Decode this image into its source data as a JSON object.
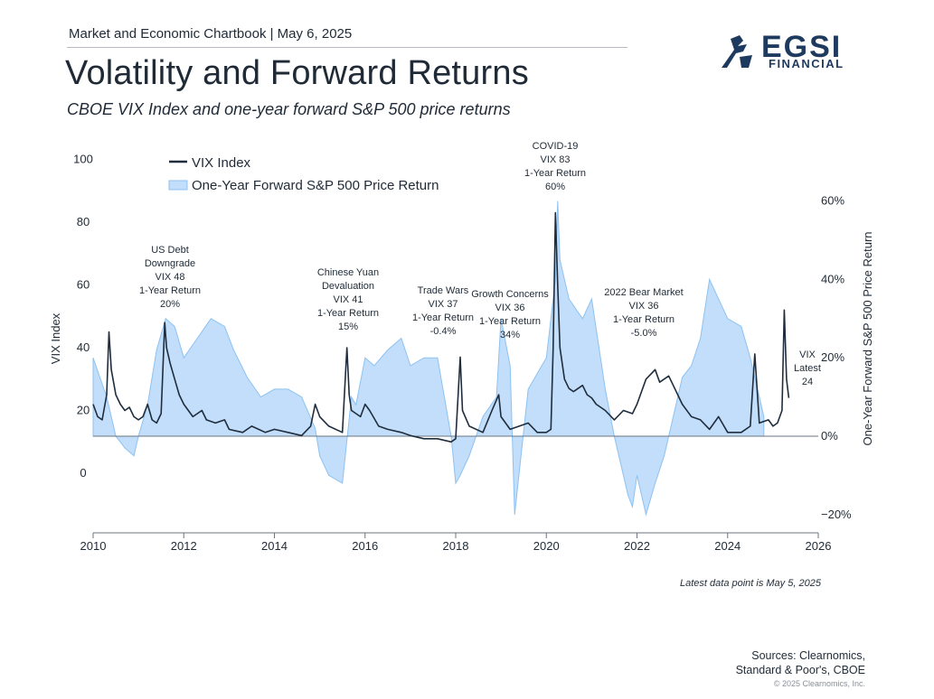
{
  "header": {
    "topline": "Market and Economic Chartbook | May 6, 2025",
    "title": "Volatility and Forward Returns",
    "subtitle": "CBOE VIX Index and one-year forward S&P 500 price returns"
  },
  "logo": {
    "name": "EGSI",
    "sub": "FINANCIAL",
    "icon": "eagle-logo-icon"
  },
  "footer": {
    "note": "Latest data point is May 5, 2025",
    "sources_line1": "Sources: Clearnomics,",
    "sources_line2": "Standard & Poor's, CBOE",
    "copyright": "© 2025 Clearnomics, Inc."
  },
  "colors": {
    "vix": "#1f2d3d",
    "ret_fill": "#c3defa",
    "ret_line": "#8cc2f1",
    "axis": "#6b7480"
  },
  "chart_data": {
    "type": "line",
    "xlabel": "",
    "ylabel": "VIX Index",
    "y2label": "One-Year Forward S&P 500 Price Return",
    "xlim": [
      2010,
      2026
    ],
    "ylim": [
      0,
      100
    ],
    "y2lim": [
      -20,
      60
    ],
    "x_ticks": [
      "2010",
      "2012",
      "2014",
      "2016",
      "2018",
      "2020",
      "2022",
      "2024",
      "2026"
    ],
    "y_ticks": [
      "0",
      "20",
      "40",
      "60",
      "80",
      "100"
    ],
    "y2_ticks": [
      "−20%",
      "0%",
      "20%",
      "40%",
      "60%"
    ],
    "legend_position": "top-left",
    "series": [
      {
        "name": "VIX Index",
        "axis": "left",
        "x": [
          2010.0,
          2010.1,
          2010.2,
          2010.3,
          2010.35,
          2010.4,
          2010.5,
          2010.6,
          2010.7,
          2010.8,
          2010.9,
          2011.0,
          2011.1,
          2011.2,
          2011.3,
          2011.4,
          2011.5,
          2011.58,
          2011.62,
          2011.7,
          2011.8,
          2011.9,
          2012.0,
          2012.2,
          2012.4,
          2012.5,
          2012.7,
          2012.9,
          2013.0,
          2013.3,
          2013.5,
          2013.8,
          2014.0,
          2014.3,
          2014.6,
          2014.8,
          2014.9,
          2015.0,
          2015.2,
          2015.5,
          2015.6,
          2015.65,
          2015.7,
          2015.9,
          2016.0,
          2016.1,
          2016.3,
          2016.5,
          2016.8,
          2017.0,
          2017.3,
          2017.6,
          2017.9,
          2018.0,
          2018.1,
          2018.15,
          2018.3,
          2018.6,
          2018.8,
          2018.95,
          2019.0,
          2019.2,
          2019.4,
          2019.6,
          2019.8,
          2020.0,
          2020.1,
          2020.15,
          2020.2,
          2020.25,
          2020.3,
          2020.4,
          2020.5,
          2020.6,
          2020.8,
          2020.9,
          2021.0,
          2021.1,
          2021.3,
          2021.5,
          2021.7,
          2021.9,
          2022.0,
          2022.2,
          2022.4,
          2022.5,
          2022.7,
          2022.8,
          2023.0,
          2023.2,
          2023.4,
          2023.6,
          2023.8,
          2024.0,
          2024.3,
          2024.5,
          2024.6,
          2024.7,
          2024.9,
          2025.0,
          2025.1,
          2025.2,
          2025.25,
          2025.3,
          2025.35
        ],
        "values": [
          22,
          18,
          17,
          25,
          45,
          33,
          25,
          22,
          20,
          21,
          18,
          17,
          18,
          22,
          17,
          16,
          19,
          48,
          40,
          35,
          30,
          25,
          22,
          18,
          20,
          17,
          16,
          17,
          14,
          13,
          15,
          13,
          14,
          13,
          12,
          15,
          22,
          18,
          15,
          13,
          40,
          25,
          20,
          18,
          22,
          20,
          15,
          14,
          13,
          12,
          11,
          11,
          10,
          11,
          37,
          20,
          15,
          13,
          20,
          25,
          18,
          14,
          15,
          16,
          13,
          13,
          14,
          40,
          83,
          60,
          40,
          30,
          27,
          26,
          28,
          25,
          24,
          22,
          20,
          17,
          20,
          19,
          22,
          30,
          33,
          29,
          31,
          28,
          22,
          18,
          17,
          14,
          18,
          13,
          13,
          15,
          38,
          16,
          17,
          15,
          16,
          20,
          52,
          30,
          24
        ]
      },
      {
        "name": "One-Year Forward S&P 500 Price Return",
        "axis": "right",
        "x": [
          2010.0,
          2010.3,
          2010.5,
          2010.7,
          2010.9,
          2011.0,
          2011.2,
          2011.4,
          2011.6,
          2011.8,
          2012.0,
          2012.3,
          2012.6,
          2012.9,
          2013.1,
          2013.4,
          2013.7,
          2014.0,
          2014.3,
          2014.6,
          2014.9,
          2015.0,
          2015.2,
          2015.5,
          2015.7,
          2015.8,
          2016.0,
          2016.2,
          2016.5,
          2016.8,
          2017.0,
          2017.3,
          2017.6,
          2017.9,
          2018.0,
          2018.1,
          2018.3,
          2018.6,
          2018.9,
          2019.0,
          2019.2,
          2019.3,
          2019.6,
          2019.9,
          2020.0,
          2020.2,
          2020.25,
          2020.3,
          2020.5,
          2020.8,
          2021.0,
          2021.3,
          2021.5,
          2021.7,
          2021.8,
          2021.9,
          2022.0,
          2022.2,
          2022.4,
          2022.6,
          2022.8,
          2023.0,
          2023.2,
          2023.4,
          2023.6,
          2023.8,
          2024.0,
          2024.3,
          2024.5,
          2024.6,
          2024.8
        ],
        "values": [
          20,
          10,
          0,
          -3,
          -5,
          0,
          8,
          22,
          30,
          28,
          20,
          25,
          30,
          28,
          22,
          15,
          10,
          12,
          12,
          10,
          2,
          -5,
          -10,
          -12,
          10,
          8,
          20,
          18,
          22,
          25,
          18,
          20,
          20,
          0,
          -12,
          -10,
          -5,
          5,
          10,
          30,
          18,
          -20,
          12,
          18,
          20,
          40,
          60,
          45,
          35,
          30,
          35,
          12,
          0,
          -10,
          -15,
          -18,
          -10,
          -20,
          -12,
          -5,
          5,
          15,
          18,
          25,
          40,
          35,
          30,
          28,
          20,
          15,
          5
        ]
      }
    ],
    "annotations": [
      {
        "lines": [
          "US Debt",
          "Downgrade",
          "VIX 48",
          "1-Year Return",
          "20%"
        ]
      },
      {
        "lines": [
          "Chinese Yuan",
          "Devaluation",
          "VIX 41",
          "1-Year Return",
          "15%"
        ]
      },
      {
        "lines": [
          "Trade Wars",
          "VIX 37",
          "1-Year Return",
          "-0.4%"
        ]
      },
      {
        "lines": [
          "Growth Concerns",
          "VIX 36",
          "1-Year Return",
          "34%"
        ]
      },
      {
        "lines": [
          "COVID-19",
          "VIX 83",
          "1-Year Return",
          "60%"
        ]
      },
      {
        "lines": [
          "2022 Bear Market",
          "VIX 36",
          "1-Year Return",
          "-5.0%"
        ]
      },
      {
        "lines": [
          "VIX",
          "Latest",
          "24"
        ]
      }
    ]
  }
}
